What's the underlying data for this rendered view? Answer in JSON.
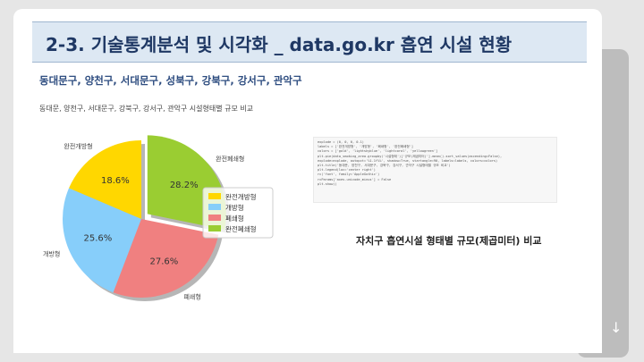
{
  "slide": {
    "title": "2-3. 기술통계분석 및 시각화 _ data.go.kr 흡연 시설 현황",
    "subtitle": "동대문구, 양천구, 서대문구, 성북구, 강북구, 강서구, 관악구",
    "caption": "자치구 흡연시설 형태별 규모(제곱미터) 비교"
  },
  "code_lines": [
    "explode = (0, 0, 0, 0.1)",
    "labels = ['완전개방형', '개방형', '폐쇄형', '완전폐쇄형']",
    "colors = ['gold', 'lightskyblue', 'lightcoral', 'yellowgreen']",
    "plt.pie(data_smoking_area.groupby('시설형태')['규모(제곱미터)'].mean().sort_values(ascending=False),",
    "        explode=explode, autopct='%1.1f%%', shadow=True, startangle=90, labels=labels, colors=colors)",
    "plt.title('동대문, 양천구, 서대문구, 강북구, 강서구, 관악구 시설형태별 규모 비교')",
    "plt.legend(loc='center right')",
    "rc('font', family='AppleGothic')",
    "rcParams['axes.unicode_minus'] = False",
    "plt.show()"
  ],
  "chart_data": {
    "type": "pie",
    "title": "동대문, 양천구, 서대문구, 강북구, 강서구, 관악구 시설형태별 규모 비교",
    "categories": [
      "완전개방형",
      "개방형",
      "폐쇄형",
      "완전폐쇄형"
    ],
    "values": [
      18.6,
      25.6,
      27.6,
      28.2
    ],
    "value_labels": [
      "18.6%",
      "25.6%",
      "27.6%",
      "28.2%"
    ],
    "colors": [
      "#ffd700",
      "#87cefa",
      "#f08080",
      "#9acd32"
    ],
    "explode": [
      0,
      0,
      0,
      0.1
    ],
    "start_angle": 90,
    "shadow": true,
    "legend": "center right"
  }
}
